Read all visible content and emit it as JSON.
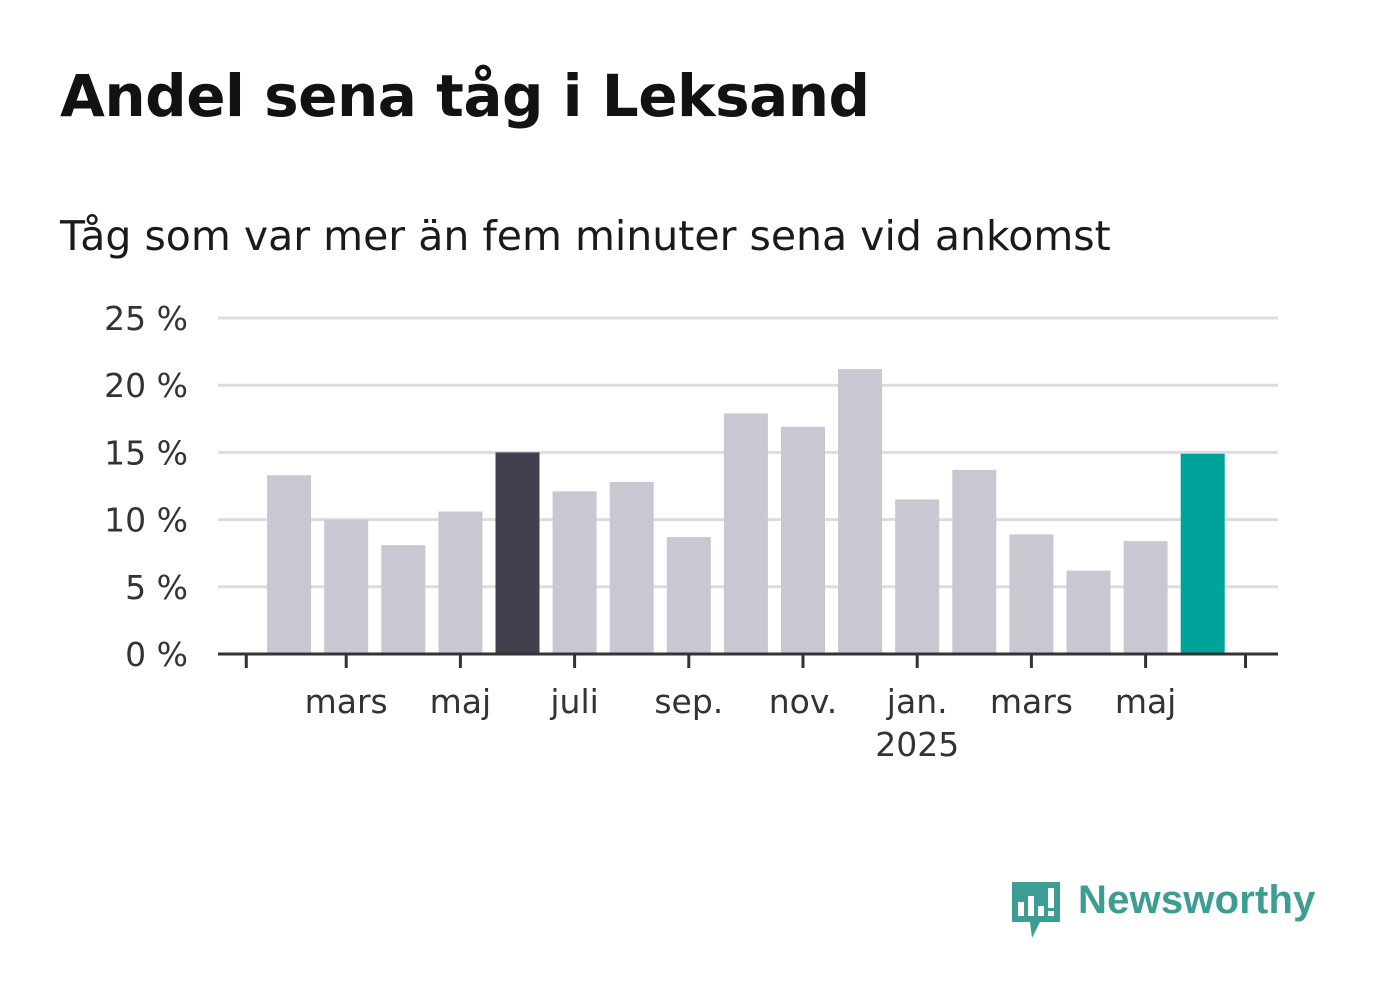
{
  "header": {
    "title": "Andel sena tåg i Leksand",
    "subtitle": "Tåg som var mer än fem minuter sena vid ankomst"
  },
  "branding": {
    "name": "Newsworthy",
    "icon": "newsworthy-chart-bubble-icon",
    "color": "#3d9d93"
  },
  "chart_data": {
    "type": "bar",
    "unit": "%",
    "ylim": [
      0,
      25
    ],
    "yticks": [
      0,
      5,
      10,
      15,
      20,
      25
    ],
    "ytick_labels": [
      "0 %",
      "5 %",
      "10 %",
      "15 %",
      "20 %",
      "25 %"
    ],
    "grid": true,
    "categories": [
      "2024-02",
      "2024-03",
      "2024-04",
      "2024-05",
      "2024-06",
      "2024-07",
      "2024-08",
      "2024-09",
      "2024-10",
      "2024-11",
      "2024-12",
      "2025-01",
      "2025-02",
      "2025-03",
      "2025-04",
      "2025-05",
      "2025-06"
    ],
    "values": [
      13.3,
      10.0,
      8.1,
      10.6,
      15.0,
      12.1,
      12.8,
      8.7,
      17.9,
      16.9,
      21.2,
      11.5,
      13.7,
      8.9,
      6.2,
      8.4,
      14.9
    ],
    "colors": {
      "default": "#c8c7d2",
      "highlight": "#42404e",
      "latest": "#00a399",
      "grid": "#dddddd",
      "axis": "#333333"
    },
    "highlight_index": 4,
    "latest_index": 16,
    "xticks": [
      {
        "category": "2024-03",
        "label": "mars"
      },
      {
        "category": "2024-05",
        "label": "maj"
      },
      {
        "category": "2024-07",
        "label": "juli"
      },
      {
        "category": "2024-09",
        "label": "sep."
      },
      {
        "category": "2024-11",
        "label": "nov."
      },
      {
        "category": "2025-01",
        "label": "jan.",
        "sublabel": "2025"
      },
      {
        "category": "2025-03",
        "label": "mars"
      },
      {
        "category": "2025-05",
        "label": "maj"
      }
    ]
  }
}
